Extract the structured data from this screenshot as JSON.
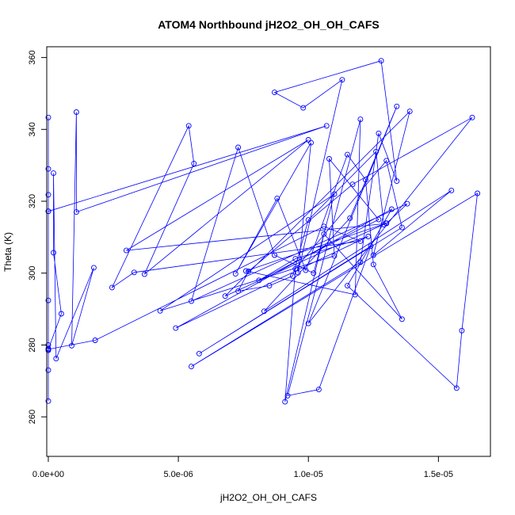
{
  "chart_data": {
    "type": "line",
    "title": "ATOM4 Northbound jH2O2_OH_OH_CAFS",
    "xlabel": "jH2O2_OH_OH_CAFS",
    "ylabel": "Theta (K)",
    "xlim": [
      -6e-08,
      1.7e-05
    ],
    "ylim": [
      249,
      363
    ],
    "x_ticks": [
      0,
      5e-06,
      1e-05,
      1.5e-05
    ],
    "x_tick_labels": [
      "0.0e+00",
      "5.0e-06",
      "1.0e-05",
      "1.5e-05"
    ],
    "y_ticks": [
      260,
      280,
      300,
      320,
      340,
      360
    ],
    "y_tick_labels": [
      "260",
      "280",
      "300",
      "320",
      "340",
      "360"
    ],
    "marker": "open-circle",
    "grid": false,
    "legend": "none",
    "series": [
      {
        "color": "#0000ff",
        "points": [
          [
            0.0,
            343.3
          ],
          [
            0.0,
            329.0
          ],
          [
            0.0,
            321.8
          ],
          [
            0.0,
            317.2
          ],
          [
            0.0,
            292.4
          ],
          [
            0.0,
            280.0
          ],
          [
            0.0,
            279.0
          ],
          [
            0.0,
            278.5
          ],
          [
            0.0,
            273.0
          ],
          [
            0.0,
            264.4
          ],
          [
            0.0,
            317.2
          ],
          [
            1.07e-05,
            341.0
          ],
          [
            1.08e-06,
            317.0
          ],
          [
            1.08e-06,
            344.8
          ],
          [
            9e-07,
            279.8
          ],
          [
            1.75e-06,
            301.5
          ],
          [
            3e-07,
            276.2
          ],
          [
            2e-07,
            327.8
          ],
          [
            2e-07,
            305.7
          ],
          [
            5e-07,
            288.7
          ],
          [
            0.0,
            278.8
          ],
          [
            1.8e-06,
            281.3
          ],
          [
            1.06e-05,
            313.0
          ],
          [
            1.2e-05,
            308.9
          ],
          [
            3.3e-06,
            300.2
          ],
          [
            2.45e-06,
            296.0
          ],
          [
            5.4e-06,
            341.0
          ],
          [
            5.6e-06,
            330.5
          ],
          [
            3.7e-06,
            299.7
          ],
          [
            1e-05,
            337.1
          ],
          [
            3e-06,
            306.3
          ],
          [
            1.3e-05,
            313.8
          ],
          [
            1.38e-05,
            319.3
          ],
          [
            5.5e-06,
            292.2
          ],
          [
            7.3e-06,
            335.0
          ],
          [
            8.7e-06,
            305.0
          ],
          [
            1.02e-05,
            300.0
          ],
          [
            1.1e-05,
            322.0
          ],
          [
            4.3e-06,
            289.5
          ],
          [
            1.1e-05,
            304.8
          ],
          [
            1.08e-05,
            331.8
          ],
          [
            1.27e-05,
            314.9
          ],
          [
            8.1e-06,
            298.0
          ],
          [
            9.5e-06,
            304.0
          ],
          [
            1.23e-05,
            310.2
          ],
          [
            4.9e-06,
            284.7
          ],
          [
            1.32e-05,
            317.8
          ],
          [
            1.15e-05,
            296.5
          ],
          [
            1.57e-05,
            268.0
          ],
          [
            1.59e-05,
            284.0
          ],
          [
            1.65e-05,
            322.2
          ],
          [
            5.5e-06,
            274.0
          ],
          [
            1.2e-05,
            303.0
          ],
          [
            1.27e-05,
            338.9
          ],
          [
            1.34e-05,
            325.6
          ],
          [
            1.28e-05,
            359.1
          ],
          [
            8.7e-06,
            350.3
          ],
          [
            9.8e-06,
            346.0
          ],
          [
            1.13e-05,
            353.8
          ],
          [
            9.6e-06,
            300.1
          ],
          [
            1.01e-05,
            336.3
          ],
          [
            7.2e-06,
            299.8
          ],
          [
            8.8e-06,
            320.8
          ],
          [
            9.9e-06,
            300.8
          ],
          [
            1.15e-05,
            333.0
          ],
          [
            1.22e-05,
            326.0
          ],
          [
            1.25e-05,
            302.4
          ],
          [
            1.36e-05,
            287.2
          ],
          [
            1.06e-05,
            310.9
          ],
          [
            9.1e-06,
            264.2
          ],
          [
            9.5e-06,
            301.2
          ],
          [
            1.3e-05,
            331.3
          ],
          [
            1.36e-05,
            312.7
          ],
          [
            5.8e-06,
            277.6
          ],
          [
            1.24e-05,
            307.5
          ],
          [
            1.04e-05,
            267.6
          ],
          [
            9.2e-06,
            265.9
          ],
          [
            1.2e-05,
            342.8
          ],
          [
            1.18e-05,
            294.0
          ],
          [
            7.6e-06,
            300.6
          ],
          [
            1.3e-05,
            313.9
          ],
          [
            6.8e-06,
            293.6
          ],
          [
            1.39e-05,
            345.0
          ],
          [
            1.25e-05,
            305.0
          ],
          [
            1.55e-05,
            323.0
          ],
          [
            8.3e-06,
            289.4
          ],
          [
            1.16e-05,
            315.3
          ],
          [
            1.34e-05,
            346.4
          ],
          [
            1e-05,
            286.0
          ],
          [
            1.63e-05,
            343.3
          ],
          [
            1.17e-05,
            324.7
          ],
          [
            7.7e-06,
            300.5
          ],
          [
            7.3e-06,
            295.0
          ],
          [
            8.5e-06,
            296.5
          ],
          [
            9.4e-06,
            299.2
          ],
          [
            1e-05,
            314.8
          ],
          [
            1.26e-05,
            333.8
          ],
          [
            1.29e-05,
            313.5
          ]
        ]
      }
    ]
  }
}
